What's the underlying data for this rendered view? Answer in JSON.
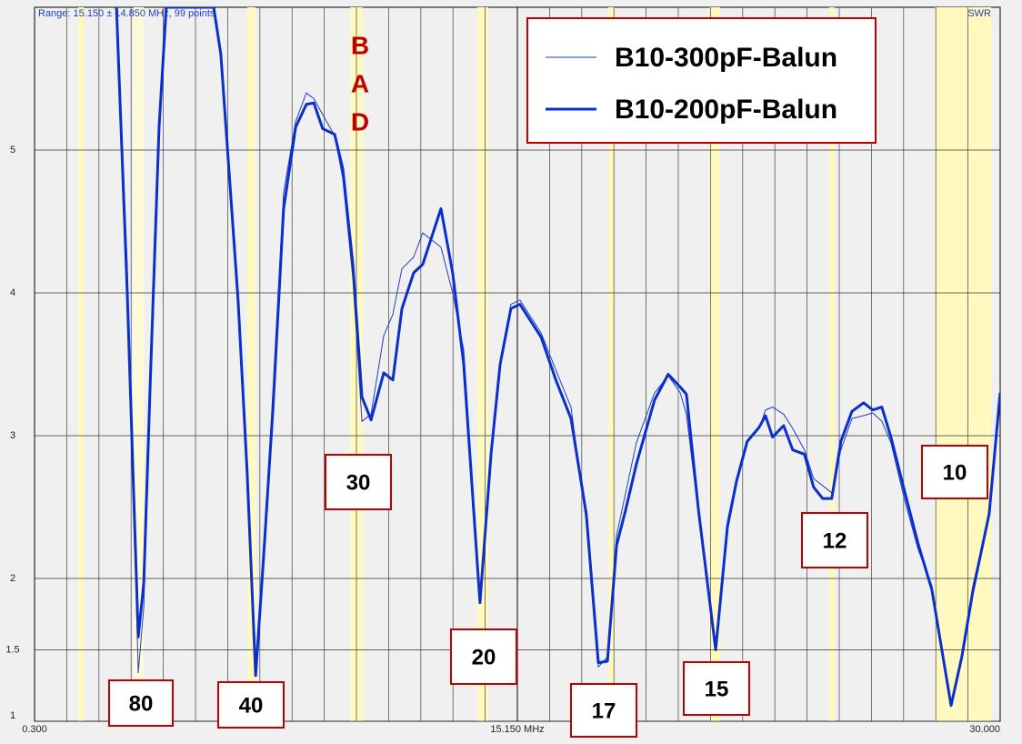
{
  "chart_data": {
    "type": "line",
    "header": "Range: 15.150 ± 14.850 MHz, 99 points",
    "y_axis_label": "SWR",
    "xlim": [
      0.3,
      30.0
    ],
    "ylim": [
      1,
      6
    ],
    "xticks": [
      {
        "value": 0.3,
        "label": "0.300"
      },
      {
        "value": 15.15,
        "label": "15.150 MHz"
      },
      {
        "value": 30.0,
        "label": "30.000"
      }
    ],
    "yticks": [
      1,
      1.5,
      2,
      3,
      4,
      5
    ],
    "xgrid": [
      0.3,
      1.29,
      2.28,
      3.27,
      4.26,
      5.25,
      6.24,
      7.23,
      8.22,
      9.21,
      10.2,
      11.19,
      12.18,
      13.17,
      14.16,
      15.15,
      16.14,
      17.13,
      18.12,
      19.11,
      20.1,
      21.09,
      22.08,
      23.07,
      24.06,
      25.05,
      26.04,
      27.03,
      28.02,
      29.01,
      30.0
    ],
    "grid": true,
    "legend": "top-right",
    "x": [
      2.82,
      3.15,
      3.49,
      3.66,
      3.86,
      4.13,
      4.35,
      5.81,
      6.03,
      6.56,
      6.84,
      7.1,
      7.35,
      7.63,
      7.96,
      8.33,
      8.66,
      8.89,
      9.16,
      9.53,
      9.78,
      10.09,
      10.37,
      10.65,
      11.04,
      11.32,
      11.6,
      11.96,
      12.24,
      12.8,
      13.16,
      13.5,
      14.0,
      14.34,
      14.62,
      14.95,
      15.23,
      15.88,
      16.35,
      16.8,
      17.27,
      17.64,
      17.92,
      18.2,
      18.48,
      18.81,
      19.37,
      19.79,
      20.16,
      20.35,
      20.72,
      21.25,
      21.61,
      21.89,
      22.22,
      22.59,
      22.78,
      23.0,
      23.34,
      23.62,
      23.98,
      24.26,
      24.54,
      24.82,
      25.1,
      25.44,
      25.8,
      26.08,
      26.36,
      26.64,
      27.06,
      27.48,
      27.9,
      28.49,
      28.82,
      29.16,
      29.66,
      30.0
    ],
    "series": [
      {
        "name": "B10-300pF-Balun",
        "color": "#1f3fbf",
        "width": 1,
        "values": [
          6,
          4.2,
          1.34,
          1.8,
          3.5,
          5.2,
          6,
          6,
          5.7,
          4.0,
          2.8,
          1.35,
          2.2,
          3.3,
          4.7,
          5.2,
          5.4,
          5.36,
          5.25,
          5.1,
          4.8,
          4.1,
          3.1,
          3.15,
          3.7,
          3.85,
          4.17,
          4.25,
          4.42,
          4.32,
          4.0,
          3.6,
          1.85,
          2.9,
          3.5,
          3.92,
          3.95,
          3.72,
          3.45,
          3.2,
          2.4,
          1.38,
          1.45,
          2.3,
          2.6,
          2.95,
          3.3,
          3.42,
          3.3,
          3.15,
          2.45,
          1.52,
          2.4,
          2.7,
          2.95,
          3.05,
          3.18,
          3.2,
          3.15,
          3.05,
          2.9,
          2.7,
          2.65,
          2.6,
          2.9,
          3.12,
          3.14,
          3.16,
          3.1,
          2.95,
          2.55,
          2.2,
          1.95,
          1.12,
          1.48,
          1.95,
          2.45,
          3.32
        ]
      },
      {
        "name": "B10-200pF-Balun",
        "color": "#0a2fcc",
        "width": 3,
        "values": [
          6,
          4.01,
          1.59,
          1.97,
          3.38,
          5.16,
          6,
          6,
          5.67,
          3.95,
          2.74,
          1.32,
          2.17,
          3.18,
          4.59,
          5.16,
          5.32,
          5.33,
          5.15,
          5.11,
          4.87,
          4.2,
          3.27,
          3.11,
          3.44,
          3.39,
          3.89,
          4.14,
          4.2,
          4.59,
          4.14,
          3.5,
          1.83,
          2.87,
          3.5,
          3.89,
          3.92,
          3.69,
          3.38,
          3.12,
          2.45,
          1.41,
          1.42,
          2.23,
          2.48,
          2.8,
          3.25,
          3.43,
          3.34,
          3.29,
          2.48,
          1.5,
          2.36,
          2.68,
          2.96,
          3.06,
          3.14,
          2.99,
          3.07,
          2.9,
          2.87,
          2.64,
          2.56,
          2.56,
          2.96,
          3.17,
          3.23,
          3.18,
          3.2,
          2.99,
          2.61,
          2.24,
          1.92,
          1.11,
          1.45,
          1.91,
          2.45,
          3.3
        ]
      }
    ],
    "annotations": [
      "80",
      "40",
      "30",
      "20",
      "17",
      "15",
      "12",
      "10",
      "B",
      "A",
      "D"
    ]
  }
}
